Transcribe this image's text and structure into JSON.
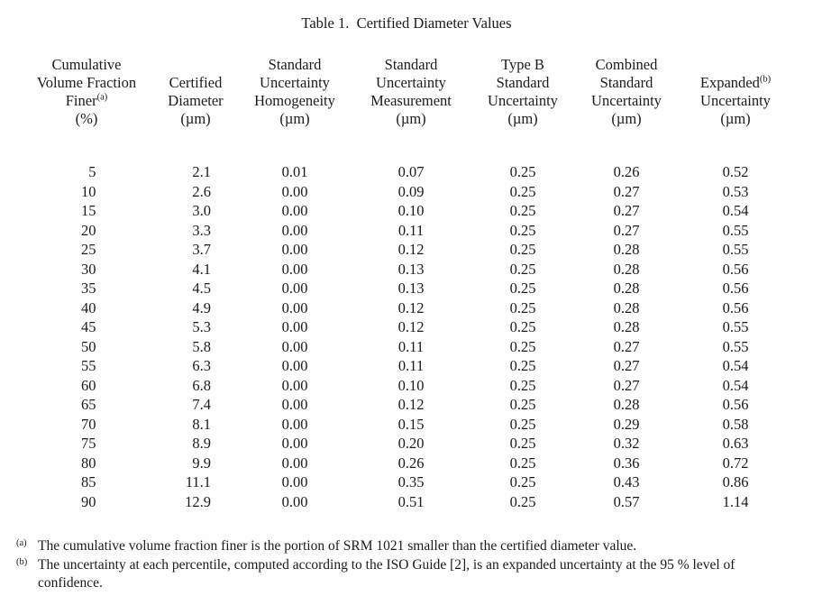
{
  "title": "Table 1.  Certified Diameter Values",
  "table": {
    "header": [
      {
        "id": "cumulative-volume-fraction-finer",
        "lines": [
          {
            "t": "Cumulative"
          },
          {
            "t": "Volume Fraction"
          },
          {
            "t": "Finer",
            "sup": "(a)"
          },
          {
            "t": "(%)"
          }
        ]
      },
      {
        "id": "certified-diameter",
        "lines": [
          {
            "t": "Certified"
          },
          {
            "t": "Diameter"
          },
          {
            "t": "(µm)"
          }
        ]
      },
      {
        "id": "standard-uncertainty-homogeneity",
        "lines": [
          {
            "t": "Standard"
          },
          {
            "t": "Uncertainty"
          },
          {
            "t": "Homogeneity"
          },
          {
            "t": "(µm)"
          }
        ]
      },
      {
        "id": "standard-uncertainty-measurement",
        "lines": [
          {
            "t": "Standard"
          },
          {
            "t": "Uncertainty"
          },
          {
            "t": "Measurement"
          },
          {
            "t": "(µm)"
          }
        ]
      },
      {
        "id": "type-b-standard-uncertainty",
        "lines": [
          {
            "t": "Type B"
          },
          {
            "t": "Standard"
          },
          {
            "t": "Uncertainty"
          },
          {
            "t": "(µm)"
          }
        ]
      },
      {
        "id": "combined-standard-uncertainty",
        "lines": [
          {
            "t": "Combined"
          },
          {
            "t": "Standard"
          },
          {
            "t": "Uncertainty"
          },
          {
            "t": "(µm)"
          }
        ]
      },
      {
        "id": "expanded-uncertainty",
        "lines": [
          {
            "t": "Expanded",
            "sup": "(b)"
          },
          {
            "t": "Uncertainty"
          },
          {
            "t": "(µm)"
          }
        ]
      }
    ],
    "rows": [
      [
        "5",
        "2.1",
        "0.01",
        "0.07",
        "0.25",
        "0.26",
        "0.52"
      ],
      [
        "10",
        "2.6",
        "0.00",
        "0.09",
        "0.25",
        "0.27",
        "0.53"
      ],
      [
        "15",
        "3.0",
        "0.00",
        "0.10",
        "0.25",
        "0.27",
        "0.54"
      ],
      [
        "20",
        "3.3",
        "0.00",
        "0.11",
        "0.25",
        "0.27",
        "0.55"
      ],
      [
        "25",
        "3.7",
        "0.00",
        "0.12",
        "0.25",
        "0.28",
        "0.55"
      ],
      [
        "30",
        "4.1",
        "0.00",
        "0.13",
        "0.25",
        "0.28",
        "0.56"
      ],
      [
        "35",
        "4.5",
        "0.00",
        "0.13",
        "0.25",
        "0.28",
        "0.56"
      ],
      [
        "40",
        "4.9",
        "0.00",
        "0.12",
        "0.25",
        "0.28",
        "0.56"
      ],
      [
        "45",
        "5.3",
        "0.00",
        "0.12",
        "0.25",
        "0.28",
        "0.55"
      ],
      [
        "50",
        "5.8",
        "0.00",
        "0.11",
        "0.25",
        "0.27",
        "0.55"
      ],
      [
        "55",
        "6.3",
        "0.00",
        "0.11",
        "0.25",
        "0.27",
        "0.54"
      ],
      [
        "60",
        "6.8",
        "0.00",
        "0.10",
        "0.25",
        "0.27",
        "0.54"
      ],
      [
        "65",
        "7.4",
        "0.00",
        "0.12",
        "0.25",
        "0.28",
        "0.56"
      ],
      [
        "70",
        "8.1",
        "0.00",
        "0.15",
        "0.25",
        "0.29",
        "0.58"
      ],
      [
        "75",
        "8.9",
        "0.00",
        "0.20",
        "0.25",
        "0.32",
        "0.63"
      ],
      [
        "80",
        "9.9",
        "0.00",
        "0.26",
        "0.25",
        "0.36",
        "0.72"
      ],
      [
        "85",
        "11.1",
        "0.00",
        "0.35",
        "0.25",
        "0.43",
        "0.86"
      ],
      [
        "90",
        "12.9",
        "0.00",
        "0.51",
        "0.25",
        "0.57",
        "1.14"
      ]
    ]
  },
  "footnotes": [
    {
      "marker": "(a)",
      "text": "The cumulative volume fraction finer is the portion of SRM 1021 smaller than the certified diameter value."
    },
    {
      "marker": "(b)",
      "text": "The uncertainty at each percentile, computed according to the ISO Guide [2], is an expanded uncertainty at the 95 % level of confidence."
    }
  ]
}
